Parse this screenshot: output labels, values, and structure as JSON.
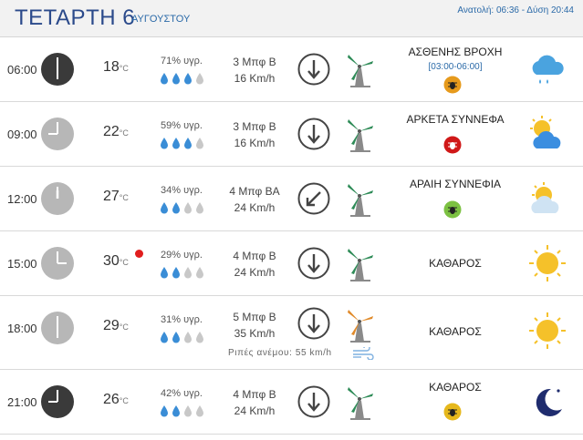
{
  "header": {
    "day": "ΤΕΤΑΡΤΗ 6",
    "month": "ΑΥΓΟΥΣΤΟΥ",
    "sunrise_sunset": "Ανατολή: 06:36 - Δύση 20:44"
  },
  "units": {
    "temp": "°C"
  },
  "rows": [
    {
      "time": "06:00",
      "clock_icon": "clock-6",
      "clock_color": "#3a3a3a",
      "temp": "18",
      "humidity": "71% υγρ.",
      "rain_drops_filled": 3,
      "wind_force": "3 Μπφ Β",
      "wind_speed": "16 Km/h",
      "wind_direction": "north",
      "turbine_color": "#2e8b57",
      "condition": "ΑΣΘΕΝΗΣ ΒΡΟΧΗ",
      "condition_range": "[03:00-06:00]",
      "badge_color": "#e69a1c",
      "weather_icon": "rain-cloud-icon"
    },
    {
      "time": "09:00",
      "clock_icon": "clock-9",
      "clock_color": "#b7b7b7",
      "temp": "22",
      "humidity": "59% υγρ.",
      "rain_drops_filled": 3,
      "wind_force": "3 Μπφ Β",
      "wind_speed": "16 Km/h",
      "wind_direction": "north",
      "turbine_color": "#2e8b57",
      "condition": "ΑΡΚΕΤΑ ΣΥΝΝΕΦΑ",
      "badge_color": "#d01818",
      "weather_icon": "sun-cloud-icon"
    },
    {
      "time": "12:00",
      "clock_icon": "clock-12",
      "clock_color": "#b7b7b7",
      "temp": "27",
      "humidity": "34% υγρ.",
      "rain_drops_filled": 2,
      "wind_force": "4 Μπφ ΒΑ",
      "wind_speed": "24 Km/h",
      "wind_direction": "northeast",
      "turbine_color": "#2e8b57",
      "condition": "ΑΡΑΙΗ ΣΥΝΝΕΦΙΑ",
      "badge_color": "#7cc142",
      "weather_icon": "partly-cloudy-icon"
    },
    {
      "time": "15:00",
      "clock_icon": "clock-15",
      "clock_color": "#b7b7b7",
      "temp": "30",
      "hot_indicator": true,
      "humidity": "29% υγρ.",
      "rain_drops_filled": 2,
      "wind_force": "4 Μπφ Β",
      "wind_speed": "24 Km/h",
      "wind_direction": "north",
      "turbine_color": "#2e8b57",
      "condition": "ΚΑΘΑΡΟΣ",
      "weather_icon": "sun-icon"
    },
    {
      "time": "18:00",
      "clock_icon": "clock-18",
      "clock_color": "#b7b7b7",
      "temp": "29",
      "humidity": "31% υγρ.",
      "rain_drops_filled": 2,
      "wind_force": "5 Μπφ Β",
      "wind_speed": "35 Km/h",
      "wind_direction": "north",
      "turbine_color": "#e08a2a",
      "condition": "ΚΑΘΑΡΟΣ",
      "weather_icon": "sun-icon",
      "gust": "Ριπές ανέμου: 55 km/h"
    },
    {
      "time": "21:00",
      "clock_icon": "clock-21",
      "clock_color": "#3a3a3a",
      "temp": "26",
      "humidity": "42% υγρ.",
      "rain_drops_filled": 2,
      "wind_force": "4 Μπφ Β",
      "wind_speed": "24 Km/h",
      "wind_direction": "north",
      "turbine_color": "#2e8b57",
      "condition": "ΚΑΘΑΡΟΣ",
      "badge_color": "#e6b81c",
      "weather_icon": "moon-icon"
    }
  ]
}
